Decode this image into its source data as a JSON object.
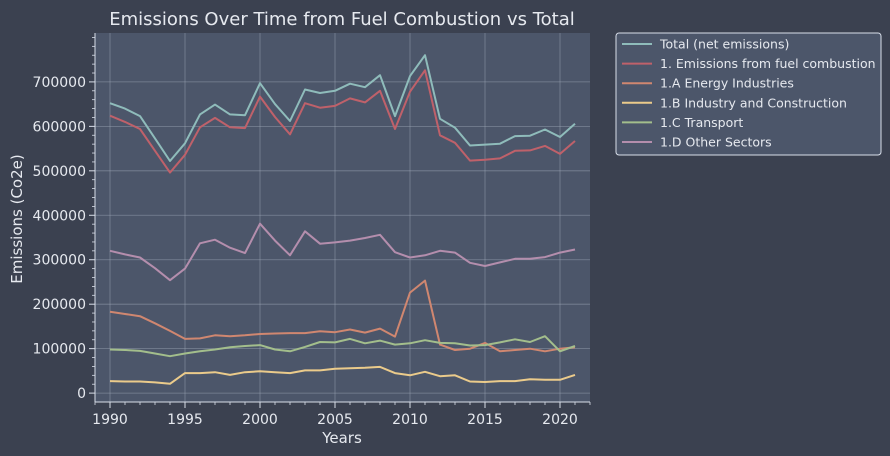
{
  "chart_data": {
    "type": "line",
    "title": "Emissions Over Time from Fuel Combustion vs Total",
    "xlabel": "Years",
    "ylabel": "Emissions (Co2e)",
    "xlim": [
      1989,
      2022
    ],
    "ylim": [
      -20000,
      810000
    ],
    "x_ticks": [
      1990,
      1995,
      2000,
      2005,
      2010,
      2015,
      2020
    ],
    "y_ticks": [
      0,
      100000,
      200000,
      300000,
      400000,
      500000,
      600000,
      700000
    ],
    "grid": true,
    "legend_placement": "outside-top-right",
    "x": [
      1990,
      1991,
      1992,
      1993,
      1994,
      1995,
      1996,
      1997,
      1998,
      1999,
      2000,
      2001,
      2002,
      2003,
      2004,
      2005,
      2006,
      2007,
      2008,
      2009,
      2010,
      2011,
      2012,
      2013,
      2014,
      2015,
      2016,
      2017,
      2018,
      2019,
      2020,
      2021
    ],
    "series": [
      {
        "name": "Total (net emissions)",
        "color": "#8fbcbb",
        "values": [
          652000,
          640000,
          623000,
          573000,
          522000,
          562000,
          627000,
          649000,
          627000,
          625000,
          697000,
          650000,
          612000,
          683000,
          675000,
          680000,
          696000,
          688000,
          715000,
          623000,
          713000,
          760000,
          617000,
          597000,
          557000,
          559000,
          561000,
          578000,
          579000,
          593000,
          576000,
          606000
        ]
      },
      {
        "name": "1. Emissions from fuel combustion",
        "color": "#bf616a",
        "values": [
          624000,
          610000,
          594000,
          545000,
          496000,
          536000,
          598000,
          619000,
          598000,
          596000,
          667000,
          621000,
          582000,
          652000,
          642000,
          646000,
          663000,
          654000,
          680000,
          594000,
          678000,
          726000,
          580000,
          563000,
          523000,
          525000,
          528000,
          545000,
          546000,
          556000,
          538000,
          567000
        ]
      },
      {
        "name": "1.A Energy Industries",
        "color": "#d08770",
        "values": [
          183000,
          178000,
          173000,
          157000,
          140000,
          122000,
          123000,
          130000,
          128000,
          130000,
          133000,
          134000,
          135000,
          135000,
          139000,
          137000,
          143000,
          136000,
          145000,
          127000,
          226000,
          253000,
          109000,
          97000,
          100000,
          113000,
          94000,
          97000,
          100000,
          94000,
          100000,
          103000
        ]
      },
      {
        "name": "1.B Industry and Construction",
        "color": "#ebcb8b",
        "values": [
          27000,
          26000,
          26000,
          24000,
          21000,
          45000,
          45000,
          47000,
          41000,
          47000,
          49000,
          47000,
          45000,
          51000,
          51000,
          55000,
          56000,
          57000,
          59000,
          45000,
          40000,
          48000,
          38000,
          40000,
          26000,
          25000,
          27000,
          27000,
          31000,
          30000,
          30000,
          41000
        ]
      },
      {
        "name": "1.C Transport",
        "color": "#a3be8c",
        "values": [
          98000,
          97000,
          95000,
          89000,
          83000,
          89000,
          94000,
          98000,
          103000,
          106000,
          108000,
          98000,
          94000,
          104000,
          115000,
          114000,
          122000,
          112000,
          118000,
          109000,
          112000,
          119000,
          113000,
          112000,
          107000,
          108000,
          114000,
          121000,
          115000,
          128000,
          94000,
          106000
        ]
      },
      {
        "name": "1.D Other Sectors",
        "color": "#b48ead",
        "values": [
          320000,
          312000,
          305000,
          281000,
          254000,
          280000,
          337000,
          345000,
          327000,
          315000,
          381000,
          343000,
          310000,
          364000,
          336000,
          339000,
          343000,
          349000,
          356000,
          317000,
          305000,
          310000,
          320000,
          316000,
          293000,
          286000,
          294000,
          302000,
          302000,
          306000,
          316000,
          323000
        ]
      }
    ]
  }
}
